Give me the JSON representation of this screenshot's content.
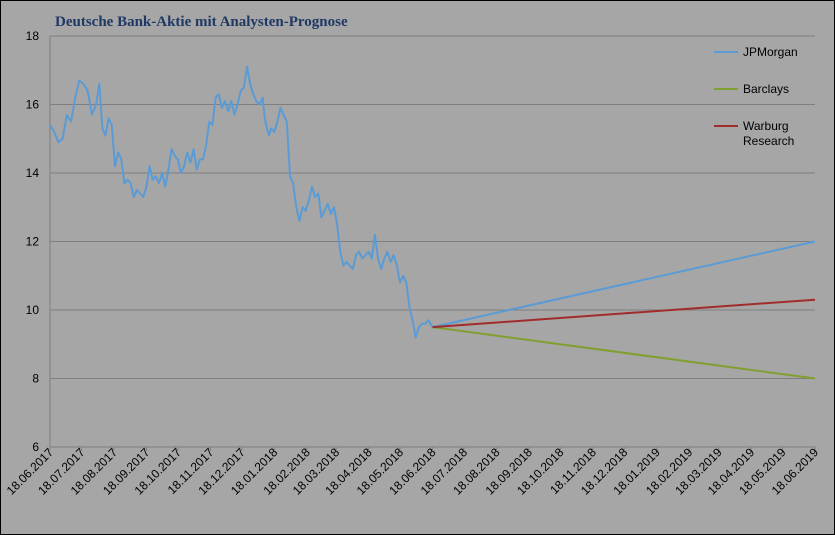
{
  "chart_data": {
    "type": "line",
    "title": "Deutsche Bank-Aktie mit Analysten-Prognose",
    "xlabel": "",
    "ylabel": "",
    "ylim": [
      6,
      18
    ],
    "yticks": [
      "6",
      "8",
      "10",
      "12",
      "14",
      "16",
      "18"
    ],
    "xlim": [
      "18.06.2017",
      "18.06.2019"
    ],
    "xticks": [
      "18.06.2017",
      "18.07.2017",
      "18.08.2017",
      "18.09.2017",
      "18.10.2017",
      "18.11.2017",
      "18.12.2017",
      "18.01.2018",
      "18.02.2018",
      "18.03.2018",
      "18.04.2018",
      "18.05.2018",
      "18.06.2018",
      "18.07.2018",
      "18.08.2018",
      "18.09.2018",
      "18.10.2018",
      "18.11.2018",
      "18.12.2018",
      "18.01.2019",
      "18.02.2019",
      "18.03.2019",
      "18.04.2019",
      "18.05.2019",
      "18.06.2019"
    ],
    "grid": "horizontal",
    "legend": "top-right",
    "colors": {
      "background": "#a6a6a6",
      "grid": "#7f7f7f",
      "price": "#5b9bd5",
      "jpmorgan": "#5b9bd5",
      "barclays": "#7fa030",
      "warburg": "#a02c2c",
      "title": "#1f3864"
    },
    "legend_entries": [
      {
        "label": "JPMorgan",
        "color": "#5b9bd5"
      },
      {
        "label": "Barclays",
        "color": "#7fa030"
      },
      {
        "label": "Warburg",
        "label2": "Research",
        "color": "#a02c2c"
      }
    ],
    "series": [
      {
        "color": "#5b9bd5",
        "points": [
          [
            "18.06.2017",
            15.4
          ],
          [
            "22.06.2017",
            15.2
          ],
          [
            "26.06.2017",
            14.9
          ],
          [
            "30.06.2017",
            15.0
          ],
          [
            "04.07.2017",
            15.7
          ],
          [
            "08.07.2017",
            15.5
          ],
          [
            "12.07.2017",
            16.2
          ],
          [
            "16.07.2017",
            16.7
          ],
          [
            "20.07.2017",
            16.6
          ],
          [
            "24.07.2017",
            16.4
          ],
          [
            "28.07.2017",
            15.7
          ],
          [
            "01.08.2017",
            16.0
          ],
          [
            "04.08.2017",
            16.6
          ],
          [
            "07.08.2017",
            15.3
          ],
          [
            "10.08.2017",
            15.1
          ],
          [
            "13.08.2017",
            15.6
          ],
          [
            "16.08.2017",
            15.4
          ],
          [
            "19.08.2017",
            14.2
          ],
          [
            "22.08.2017",
            14.6
          ],
          [
            "25.08.2017",
            14.4
          ],
          [
            "28.08.2017",
            13.7
          ],
          [
            "31.08.2017",
            13.8
          ],
          [
            "03.09.2017",
            13.7
          ],
          [
            "06.09.2017",
            13.3
          ],
          [
            "09.09.2017",
            13.5
          ],
          [
            "12.09.2017",
            13.4
          ],
          [
            "15.09.2017",
            13.3
          ],
          [
            "18.09.2017",
            13.6
          ],
          [
            "21.09.2017",
            14.2
          ],
          [
            "24.09.2017",
            13.8
          ],
          [
            "27.09.2017",
            13.9
          ],
          [
            "30.09.2017",
            13.7
          ],
          [
            "03.10.2017",
            14.0
          ],
          [
            "06.10.2017",
            13.6
          ],
          [
            "09.10.2017",
            14.1
          ],
          [
            "12.10.2017",
            14.7
          ],
          [
            "15.10.2017",
            14.5
          ],
          [
            "18.10.2017",
            14.4
          ],
          [
            "21.10.2017",
            14.0
          ],
          [
            "24.10.2017",
            14.2
          ],
          [
            "27.10.2017",
            14.6
          ],
          [
            "30.10.2017",
            14.3
          ],
          [
            "02.11.2017",
            14.7
          ],
          [
            "05.11.2017",
            14.1
          ],
          [
            "08.11.2017",
            14.4
          ],
          [
            "11.11.2017",
            14.4
          ],
          [
            "14.11.2017",
            14.8
          ],
          [
            "17.11.2017",
            15.5
          ],
          [
            "20.11.2017",
            15.4
          ],
          [
            "23.11.2017",
            16.2
          ],
          [
            "26.11.2017",
            16.3
          ],
          [
            "29.11.2017",
            15.9
          ],
          [
            "02.12.2017",
            16.1
          ],
          [
            "05.12.2017",
            15.8
          ],
          [
            "08.12.2017",
            16.1
          ],
          [
            "11.12.2017",
            15.7
          ],
          [
            "14.12.2017",
            16.0
          ],
          [
            "17.12.2017",
            16.4
          ],
          [
            "20.12.2017",
            16.5
          ],
          [
            "23.12.2017",
            17.1
          ],
          [
            "26.12.2017",
            16.6
          ],
          [
            "29.12.2017",
            16.3
          ],
          [
            "01.01.2018",
            16.1
          ],
          [
            "04.01.2018",
            16.0
          ],
          [
            "07.01.2018",
            16.2
          ],
          [
            "09.01.2018",
            15.6
          ],
          [
            "11.01.2018",
            15.3
          ],
          [
            "13.01.2018",
            15.1
          ],
          [
            "15.01.2018",
            15.3
          ],
          [
            "18.01.2018",
            15.2
          ],
          [
            "21.01.2018",
            15.5
          ],
          [
            "24.01.2018",
            15.9
          ],
          [
            "27.01.2018",
            15.7
          ],
          [
            "30.01.2018",
            15.5
          ],
          [
            "02.02.2018",
            13.9
          ],
          [
            "05.02.2018",
            13.7
          ],
          [
            "08.02.2018",
            13.0
          ],
          [
            "11.02.2018",
            12.6
          ],
          [
            "14.02.2018",
            13.0
          ],
          [
            "17.02.2018",
            12.9
          ],
          [
            "20.02.2018",
            13.2
          ],
          [
            "23.02.2018",
            13.6
          ],
          [
            "26.02.2018",
            13.3
          ],
          [
            "01.03.2018",
            13.4
          ],
          [
            "04.03.2018",
            12.7
          ],
          [
            "07.03.2018",
            12.9
          ],
          [
            "10.03.2018",
            13.1
          ],
          [
            "13.03.2018",
            12.8
          ],
          [
            "16.03.2018",
            13.0
          ],
          [
            "19.03.2018",
            12.5
          ],
          [
            "22.03.2018",
            11.7
          ],
          [
            "25.03.2018",
            11.3
          ],
          [
            "28.03.2018",
            11.4
          ],
          [
            "31.03.2018",
            11.3
          ],
          [
            "03.04.2018",
            11.2
          ],
          [
            "06.04.2018",
            11.6
          ],
          [
            "09.04.2018",
            11.7
          ],
          [
            "12.04.2018",
            11.5
          ],
          [
            "15.04.2018",
            11.6
          ],
          [
            "18.04.2018",
            11.7
          ],
          [
            "21.04.2018",
            11.5
          ],
          [
            "24.04.2018",
            12.2
          ],
          [
            "27.04.2018",
            11.5
          ],
          [
            "30.04.2018",
            11.2
          ],
          [
            "03.05.2018",
            11.5
          ],
          [
            "06.05.2018",
            11.7
          ],
          [
            "09.05.2018",
            11.4
          ],
          [
            "12.05.2018",
            11.6
          ],
          [
            "15.05.2018",
            11.3
          ],
          [
            "18.05.2018",
            10.8
          ],
          [
            "21.05.2018",
            11.0
          ],
          [
            "24.05.2018",
            10.8
          ],
          [
            "27.05.2018",
            10.1
          ],
          [
            "30.05.2018",
            9.7
          ],
          [
            "02.06.2018",
            9.2
          ],
          [
            "05.06.2018",
            9.5
          ],
          [
            "08.06.2018",
            9.6
          ],
          [
            "11.06.2018",
            9.6
          ],
          [
            "14.06.2018",
            9.7
          ],
          [
            "18.06.2018",
            9.5
          ]
        ]
      },
      {
        "name": "JPMorgan",
        "color": "#5b9bd5",
        "points": [
          [
            "18.06.2018",
            9.5
          ],
          [
            "18.06.2019",
            12.0
          ]
        ]
      },
      {
        "name": "Barclays",
        "color": "#7fa030",
        "points": [
          [
            "18.06.2018",
            9.5
          ],
          [
            "18.06.2019",
            8.0
          ]
        ]
      },
      {
        "name": "Warburg Research",
        "color": "#a02c2c",
        "points": [
          [
            "18.06.2018",
            9.5
          ],
          [
            "18.06.2019",
            10.3
          ]
        ]
      }
    ]
  }
}
